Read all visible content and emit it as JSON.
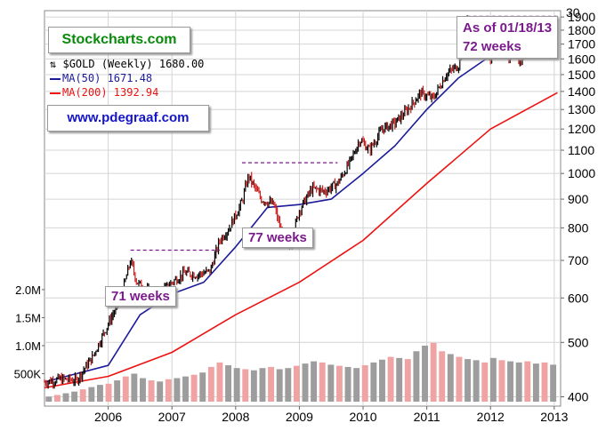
{
  "header": {
    "partial_tick_label": "30",
    "site_label": "Stockcharts.com",
    "author_label": "www.pdegraaf.com"
  },
  "legend": {
    "symbol_text": "$GOLD (Weekly) 1680.00",
    "symbol_icon": "candlestick-icon",
    "ma50_text": "MA(50) 1671.48",
    "ma200_text": "MA(200) 1392.94"
  },
  "annotations": {
    "as_of_line1": "As of 01/18/13",
    "as_of_line2": "72 weeks",
    "weeks_2008": "77 weeks",
    "weeks_2006": "71 weeks"
  },
  "colors": {
    "price_up": "#000000",
    "price_down": "#cc1a1a",
    "ma50": "#1b1b9a",
    "ma200": "#ee1111",
    "volume_up": "#9d9d9d",
    "volume_down": "#f0a3a3",
    "annotation": "#7a1a8c",
    "grid": "#d4d4d4"
  },
  "chart_data": {
    "type": "line",
    "title": "$GOLD (Weekly) 1680.00",
    "scale": "log",
    "price_axis": {
      "ticks": [
        400,
        500,
        600,
        700,
        800,
        900,
        1000,
        1100,
        1200,
        1300,
        1400,
        1500,
        1600,
        1700,
        1800,
        1900
      ],
      "range": [
        385,
        1950
      ],
      "side": "right"
    },
    "volume_axis": {
      "ticks": [
        {
          "label": "500K",
          "value": 500000
        },
        {
          "label": "1.0M",
          "value": 1000000
        },
        {
          "label": "1.5M",
          "value": 1500000
        },
        {
          "label": "2.0M",
          "value": 2000000
        }
      ],
      "side": "left"
    },
    "x_axis": {
      "ticks": [
        "2006",
        "2007",
        "2008",
        "2009",
        "2010",
        "2011",
        "2012",
        "2013"
      ],
      "range": [
        2005.0,
        2013.1
      ]
    },
    "series": [
      {
        "name": "$GOLD (Weekly)",
        "style": "high-low bars",
        "x": [
          2005.0,
          2005.25,
          2005.5,
          2005.75,
          2006.0,
          2006.2,
          2006.35,
          2006.45,
          2006.6,
          2006.8,
          2007.0,
          2007.2,
          2007.4,
          2007.6,
          2007.75,
          2007.9,
          2008.1,
          2008.2,
          2008.4,
          2008.6,
          2008.75,
          2008.85,
          2009.0,
          2009.2,
          2009.4,
          2009.6,
          2009.8,
          2009.95,
          2010.1,
          2010.3,
          2010.5,
          2010.7,
          2010.9,
          2011.1,
          2011.3,
          2011.5,
          2011.63,
          2011.7,
          2011.85,
          2012.0,
          2012.15,
          2012.3,
          2012.45,
          2012.6,
          2012.75,
          2012.85,
          2013.0,
          2013.05
        ],
        "values": [
          425,
          430,
          428,
          470,
          540,
          600,
          700,
          640,
          620,
          610,
          640,
          665,
          660,
          670,
          760,
          800,
          890,
          990,
          900,
          880,
          760,
          740,
          860,
          940,
          930,
          960,
          1050,
          1150,
          1100,
          1200,
          1230,
          1300,
          1390,
          1360,
          1500,
          1560,
          1880,
          1640,
          1700,
          1600,
          1750,
          1600,
          1580,
          1650,
          1780,
          1720,
          1660,
          1680
        ]
      },
      {
        "name": "MA(50)",
        "x": [
          2005.0,
          2006.0,
          2006.5,
          2007.0,
          2007.5,
          2008.0,
          2008.5,
          2009.0,
          2009.5,
          2010.0,
          2010.5,
          2011.0,
          2011.5,
          2012.0,
          2012.5,
          2013.05
        ],
        "values": [
          425,
          455,
          560,
          610,
          640,
          740,
          870,
          880,
          900,
          1000,
          1120,
          1300,
          1480,
          1620,
          1670,
          1671.48
        ]
      },
      {
        "name": "MA(200)",
        "x": [
          2005.0,
          2006.0,
          2007.0,
          2008.0,
          2009.0,
          2010.0,
          2011.0,
          2012.0,
          2013.05
        ],
        "values": [
          415,
          435,
          480,
          560,
          640,
          760,
          960,
          1200,
          1392.94
        ]
      }
    ],
    "volume_bars": {
      "x_start": 2005.0,
      "x_end": 2013.05,
      "count": 60,
      "values": [
        90000,
        120000,
        150000,
        180000,
        220000,
        260000,
        300000,
        320000,
        380000,
        450000,
        500000,
        420000,
        380000,
        360000,
        400000,
        420000,
        450000,
        480000,
        520000,
        620000,
        700000,
        650000,
        600000,
        580000,
        560000,
        600000,
        620000,
        580000,
        600000,
        640000,
        680000,
        720000,
        700000,
        660000,
        640000,
        620000,
        600000,
        650000,
        700000,
        750000,
        800000,
        780000,
        760000,
        900000,
        1000000,
        1050000,
        900000,
        850000,
        800000,
        760000,
        740000,
        700000,
        780000,
        740000,
        720000,
        700000,
        720000,
        680000,
        700000,
        660000
      ],
      "up": [
        1,
        0,
        1,
        1,
        0,
        1,
        1,
        0,
        1,
        0,
        1,
        1,
        0,
        1,
        0,
        1,
        1,
        0,
        1,
        0,
        0,
        1,
        1,
        0,
        1,
        1,
        0,
        1,
        1,
        0,
        1,
        1,
        0,
        1,
        0,
        1,
        1,
        0,
        1,
        1,
        0,
        1,
        0,
        1,
        1,
        0,
        0,
        1,
        0,
        1,
        1,
        0,
        1,
        0,
        1,
        1,
        0,
        1,
        0,
        1
      ]
    },
    "annotation_lines": [
      {
        "label": "71 weeks",
        "x_start": 2006.35,
        "x_end": 2007.75,
        "y": 730
      },
      {
        "label": "77 weeks",
        "x_start": 2008.1,
        "x_end": 2009.6,
        "y": 1045
      },
      {
        "label": "72 weeks",
        "x_start": 2011.63,
        "x_end": 2013.05,
        "y": 1905
      }
    ],
    "grid": true
  }
}
